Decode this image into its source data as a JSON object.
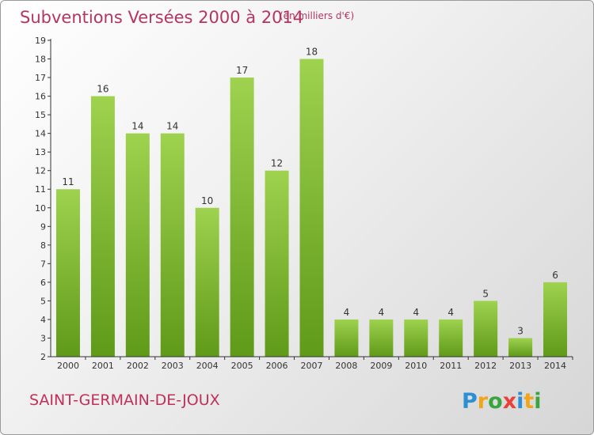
{
  "title": "Subventions Versées 2000 à 2014",
  "unit_note": "(en milliers d'€)",
  "commune": "SAINT-GERMAIN-DE-JOUX",
  "logo_text": "Proxiti",
  "colors": {
    "bar_top": "#9ed24f",
    "bar_bottom": "#5f9a18",
    "title": "#b5355f",
    "axis": "#333333"
  },
  "chart_data": {
    "type": "bar",
    "title": "Subventions Versées 2000 à 2014",
    "xlabel": "",
    "ylabel": "",
    "categories": [
      "2000",
      "2001",
      "2002",
      "2003",
      "2004",
      "2005",
      "2006",
      "2007",
      "2008",
      "2009",
      "2010",
      "2011",
      "2012",
      "2013",
      "2014"
    ],
    "values": [
      11,
      16,
      14,
      14,
      10,
      17,
      12,
      18,
      4,
      4,
      4,
      4,
      5,
      3,
      6
    ],
    "data_labels": [
      "11",
      "16",
      "14",
      "14",
      "10",
      "17",
      "12",
      "18",
      "4",
      "4",
      "4",
      "4",
      "5",
      "3",
      "6"
    ],
    "ylim": [
      2,
      19
    ],
    "yticks": [
      "2",
      "3",
      "4",
      "5",
      "6",
      "7",
      "8",
      "9",
      "10",
      "11",
      "12",
      "13",
      "14",
      "15",
      "16",
      "17",
      "18",
      "19"
    ],
    "grid": false,
    "legend": "none"
  }
}
